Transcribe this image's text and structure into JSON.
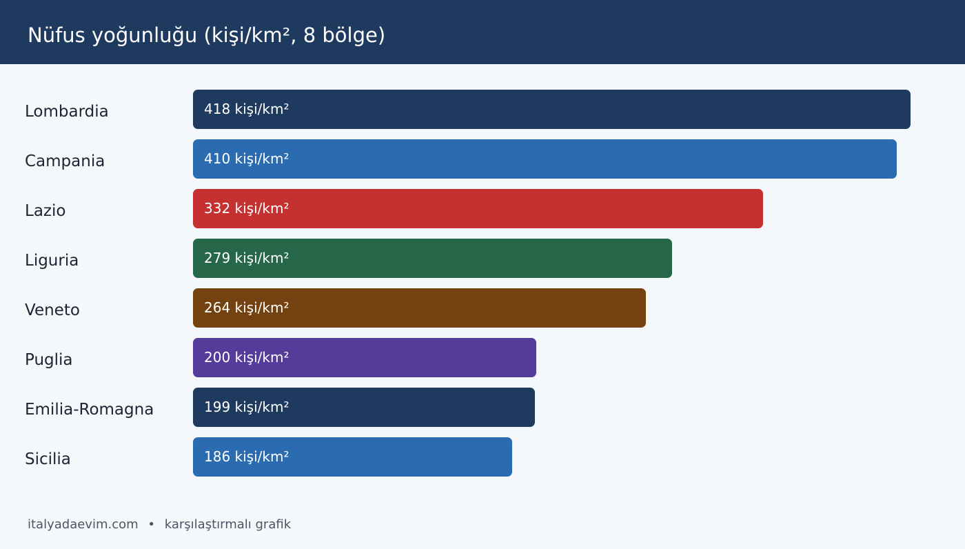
{
  "header": {
    "title": "Nüfus yoğunluğu (kişi/km², 8 bölge)"
  },
  "chart_data": {
    "type": "bar",
    "orientation": "horizontal",
    "title": "Nüfus yoğunluğu (kişi/km², 8 bölge)",
    "unit_suffix": " kişi/km²",
    "categories": [
      "Lombardia",
      "Campania",
      "Lazio",
      "Liguria",
      "Veneto",
      "Puglia",
      "Emilia-Romagna",
      "Sicilia"
    ],
    "values": [
      418,
      410,
      332,
      279,
      264,
      200,
      199,
      186
    ],
    "value_labels": [
      "418 kişi/km²",
      "410 kişi/km²",
      "332 kişi/km²",
      "279 kişi/km²",
      "264 kişi/km²",
      "200 kişi/km²",
      "199 kişi/km²",
      "186 kişi/km²"
    ],
    "colors": [
      "#1f3a5f",
      "#2b6cb0",
      "#c53030",
      "#276749",
      "#744210",
      "#553c9a",
      "#1f3a5f",
      "#2b6cb0"
    ],
    "xlim": [
      0,
      418
    ],
    "grid": false,
    "legend": "none"
  },
  "footer": {
    "site": "italyadaevim.com",
    "separator": "•",
    "caption": "karşılaştırmalı grafik"
  }
}
